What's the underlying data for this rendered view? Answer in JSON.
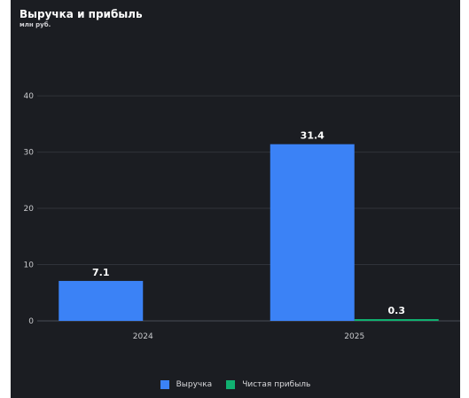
{
  "chart_data": {
    "type": "bar",
    "title": "Выручка и прибыль",
    "subtitle": "млн руб.",
    "categories": [
      "2024",
      "2025"
    ],
    "series": [
      {
        "name": "Выручка",
        "values": [
          7.1,
          31.4
        ],
        "color": "#3b82f6"
      },
      {
        "name": "Чистая прибыль",
        "values": [
          0,
          0.3
        ],
        "color": "#10b070"
      }
    ],
    "data_labels": [
      {
        "series": 0,
        "category": 0,
        "text": "7.1"
      },
      {
        "series": 0,
        "category": 1,
        "text": "31.4"
      },
      {
        "series": 1,
        "category": 1,
        "text": "0.3"
      }
    ],
    "y_ticks": [
      "0",
      "10",
      "20",
      "30",
      "40"
    ],
    "ylim": [
      0,
      46
    ],
    "grid": true,
    "legend_position": "bottom-center"
  }
}
